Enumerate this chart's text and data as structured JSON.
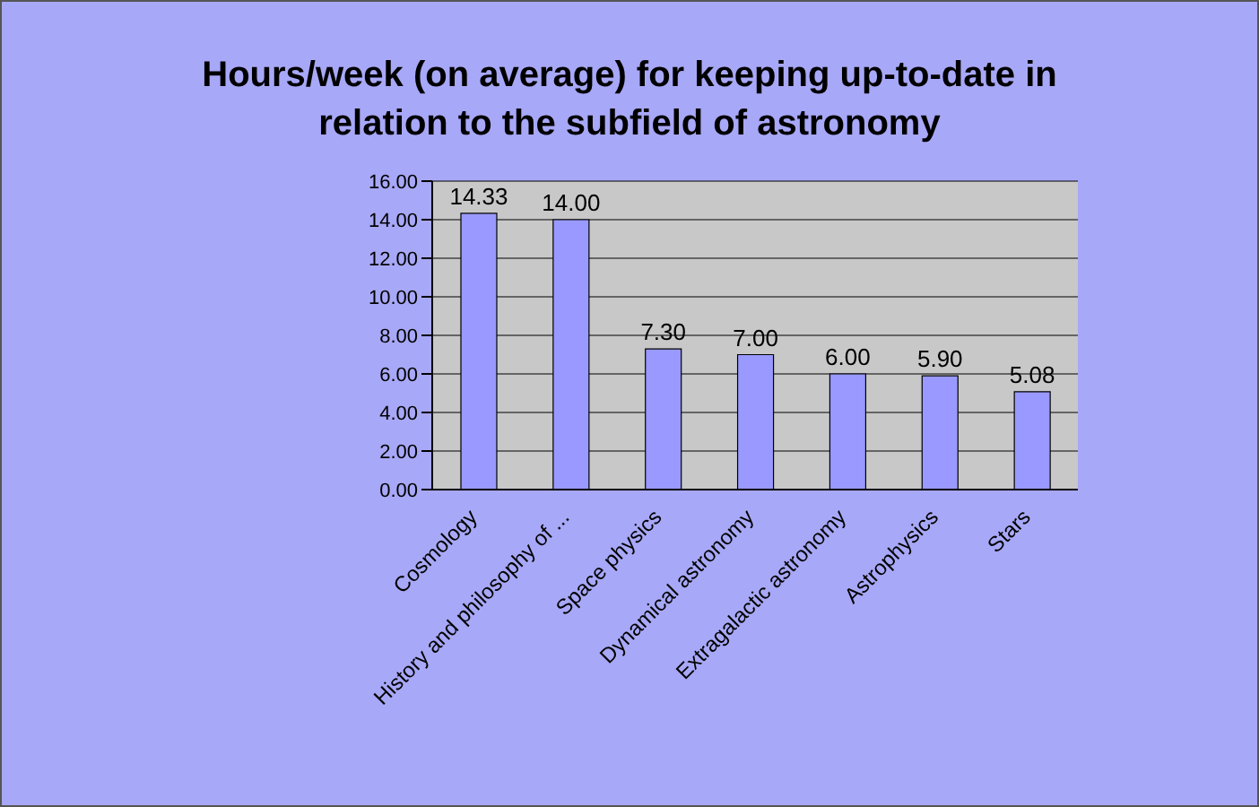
{
  "chart_data": {
    "type": "bar",
    "title": "Hours/week (on average) for keeping up-to-date in relation to the subfield of astronomy",
    "categories": [
      "Cosmology",
      "History and philosophy of ...",
      "Space physics",
      "Dynamical astronomy",
      "Extragalactic astronomy",
      "Astrophysics",
      "Stars"
    ],
    "values": [
      14.33,
      14.0,
      7.3,
      7.0,
      6.0,
      5.9,
      5.08
    ],
    "value_labels": [
      "14.33",
      "14.00",
      "7.30",
      "7.00",
      "6.00",
      "5.90",
      "5.08"
    ],
    "color": "#9999ff",
    "ylim": [
      0,
      16
    ],
    "yticks": [
      {
        "value": 0,
        "label": "0.00"
      },
      {
        "value": 2,
        "label": "2.00"
      },
      {
        "value": 4,
        "label": "4.00"
      },
      {
        "value": 6,
        "label": "6.00"
      },
      {
        "value": 8,
        "label": "8.00"
      },
      {
        "value": 10,
        "label": "10.00"
      },
      {
        "value": 12,
        "label": "12.00"
      },
      {
        "value": 14,
        "label": "14.00"
      },
      {
        "value": 16,
        "label": "16.00"
      }
    ],
    "grid": "y",
    "legend": false
  }
}
